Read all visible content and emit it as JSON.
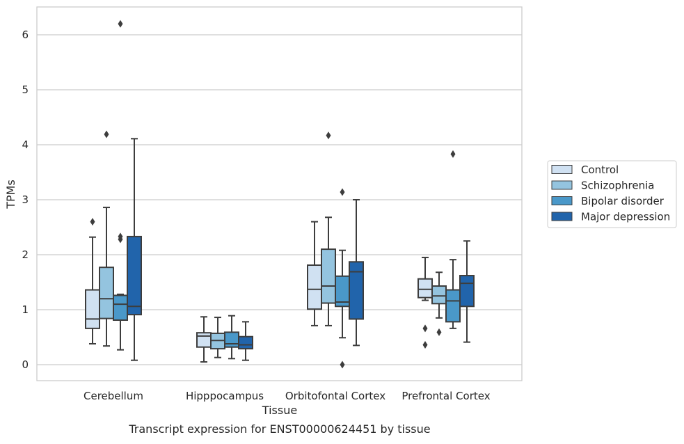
{
  "caption": "Transcript expression for ENST00000624451 by tissue",
  "chart_data": {
    "type": "box",
    "title": "",
    "xlabel": "Tissue",
    "ylabel": "TPMs",
    "ylim": [
      -0.3,
      6.5
    ],
    "yticks": [
      0,
      1,
      2,
      3,
      4,
      5,
      6
    ],
    "grid": true,
    "legend_position": "right",
    "categories": [
      "Cerebellum",
      "Hipppocampus",
      "Orbitofontal Cortex",
      "Prefrontal Cortex"
    ],
    "series": [
      {
        "name": "Control",
        "color": "#d0e1f2",
        "boxes": [
          {
            "whislo": 0.38,
            "q1": 0.66,
            "med": 0.83,
            "q3": 1.36,
            "whishi": 2.32,
            "fliers": [
              2.6
            ]
          },
          {
            "whislo": 0.05,
            "q1": 0.32,
            "med": 0.52,
            "q3": 0.58,
            "whishi": 0.87,
            "fliers": []
          },
          {
            "whislo": 0.71,
            "q1": 1.01,
            "med": 1.37,
            "q3": 1.81,
            "whishi": 2.6,
            "fliers": []
          },
          {
            "whislo": 1.17,
            "q1": 1.22,
            "med": 1.37,
            "q3": 1.56,
            "whishi": 1.95,
            "fliers": [
              0.66,
              0.36
            ]
          }
        ]
      },
      {
        "name": "Schizophrenia",
        "color": "#94c4df",
        "boxes": [
          {
            "whislo": 0.34,
            "q1": 0.84,
            "med": 1.2,
            "q3": 1.77,
            "whishi": 2.86,
            "fliers": [
              4.19
            ]
          },
          {
            "whislo": 0.13,
            "q1": 0.29,
            "med": 0.44,
            "q3": 0.57,
            "whishi": 0.86,
            "fliers": []
          },
          {
            "whislo": 0.71,
            "q1": 1.12,
            "med": 1.43,
            "q3": 2.1,
            "whishi": 2.68,
            "fliers": [
              4.17
            ]
          },
          {
            "whislo": 0.85,
            "q1": 1.11,
            "med": 1.25,
            "q3": 1.43,
            "whishi": 1.68,
            "fliers": [
              0.59
            ]
          }
        ]
      },
      {
        "name": "Bipolar disorder",
        "color": "#4a98c9",
        "boxes": [
          {
            "whislo": 0.27,
            "q1": 0.81,
            "med": 1.1,
            "q3": 1.26,
            "whishi": 1.28,
            "fliers": [
              2.33,
              2.28,
              6.2
            ]
          },
          {
            "whislo": 0.11,
            "q1": 0.32,
            "med": 0.38,
            "q3": 0.59,
            "whishi": 0.89,
            "fliers": []
          },
          {
            "whislo": 0.49,
            "q1": 1.06,
            "med": 1.14,
            "q3": 1.61,
            "whishi": 2.08,
            "fliers": [
              3.14,
              0.0
            ]
          },
          {
            "whislo": 0.66,
            "q1": 0.78,
            "med": 1.16,
            "q3": 1.36,
            "whishi": 1.91,
            "fliers": [
              3.83
            ]
          }
        ]
      },
      {
        "name": "Major depression",
        "color": "#2164ab",
        "boxes": [
          {
            "whislo": 0.08,
            "q1": 0.91,
            "med": 1.06,
            "q3": 2.33,
            "whishi": 4.11,
            "fliers": []
          },
          {
            "whislo": 0.08,
            "q1": 0.29,
            "med": 0.36,
            "q3": 0.51,
            "whishi": 0.78,
            "fliers": []
          },
          {
            "whislo": 0.35,
            "q1": 0.83,
            "med": 1.69,
            "q3": 1.87,
            "whishi": 3.0,
            "fliers": []
          },
          {
            "whislo": 0.41,
            "q1": 1.06,
            "med": 1.48,
            "q3": 1.62,
            "whishi": 2.25,
            "fliers": []
          }
        ]
      }
    ]
  }
}
